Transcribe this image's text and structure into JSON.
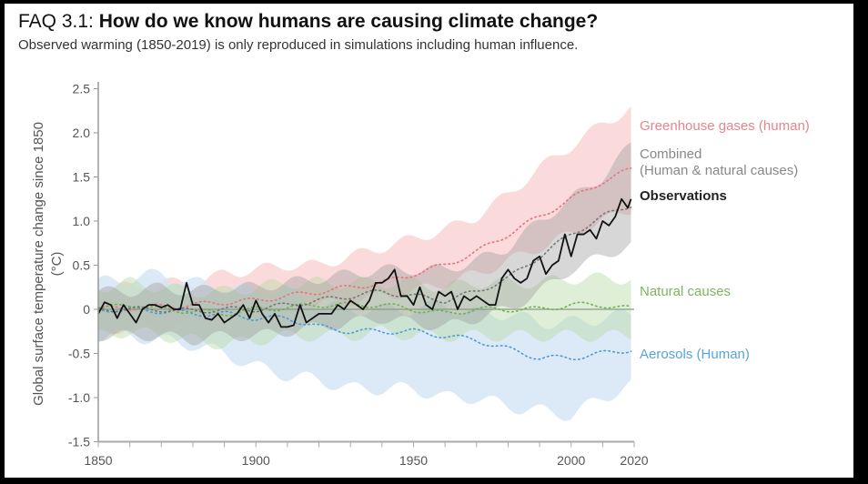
{
  "title": {
    "prefix": "FAQ 3.1:",
    "main": "How do we know humans are causing climate change?"
  },
  "subtitle": "Observed warming (1850-2019) is only reproduced in simulations including human influence.",
  "chart_data": {
    "type": "line",
    "ylabel": "Global surface temperature change since 1850",
    "yunit": "(°C)",
    "xlim": [
      1850,
      2020
    ],
    "ylim": [
      -1.5,
      2.5
    ],
    "xticks": [
      1850,
      1900,
      1950,
      2000,
      2020
    ],
    "yticks": [
      2.5,
      2.0,
      1.5,
      1.0,
      0.5,
      0,
      -0.5,
      -1.0,
      -1.5
    ],
    "ytick_labels": [
      "2.5",
      "2.0",
      "1.5",
      "1.0",
      "0.5",
      "0",
      "-0.5",
      "-1.0",
      "-1.5"
    ],
    "grid": false,
    "legend_placement": "right (inline labels)",
    "band_years": [
      1850,
      1860,
      1870,
      1880,
      1890,
      1900,
      1910,
      1920,
      1930,
      1940,
      1950,
      1960,
      1970,
      1980,
      1990,
      2000,
      2010,
      2020
    ],
    "series": [
      {
        "name": "Greenhouse gases (human)",
        "color": "#e8747a",
        "band_color": "#f9d3d5",
        "median": [
          0,
          0.02,
          0.03,
          0.05,
          0.08,
          0.1,
          0.15,
          0.2,
          0.25,
          0.3,
          0.4,
          0.5,
          0.65,
          0.85,
          1.05,
          1.25,
          1.45,
          1.6
        ],
        "low": [
          -0.25,
          -0.2,
          -0.2,
          -0.15,
          -0.1,
          -0.05,
          0,
          0.05,
          0.1,
          0.15,
          0.2,
          0.3,
          0.4,
          0.55,
          0.7,
          0.85,
          1.0,
          1.15
        ],
        "high": [
          0.25,
          0.25,
          0.3,
          0.3,
          0.4,
          0.45,
          0.5,
          0.5,
          0.6,
          0.7,
          0.8,
          0.9,
          1.05,
          1.3,
          1.6,
          1.85,
          2.1,
          2.3
        ]
      },
      {
        "name": "Aerosols (Human)",
        "color": "#4a9ad8",
        "band_color": "#d6e5f4",
        "median": [
          0,
          0,
          -0.02,
          -0.05,
          -0.05,
          -0.1,
          -0.1,
          -0.2,
          -0.25,
          -0.25,
          -0.25,
          -0.3,
          -0.35,
          -0.45,
          -0.55,
          -0.55,
          -0.5,
          -0.45
        ],
        "low": [
          -0.3,
          -0.3,
          -0.35,
          -0.4,
          -0.5,
          -0.65,
          -0.75,
          -0.8,
          -0.9,
          -0.9,
          -0.9,
          -1.0,
          -1.0,
          -1.1,
          -1.15,
          -1.2,
          -1.0,
          -0.85
        ],
        "high": [
          0.3,
          0.35,
          0.4,
          0.3,
          0.25,
          0.2,
          0.2,
          0.05,
          0,
          0,
          0,
          0.05,
          -0.05,
          -0.05,
          -0.15,
          -0.15,
          -0.1,
          -0.05
        ]
      },
      {
        "name": "Natural causes",
        "color": "#6fb24c",
        "band_color": "#b9d9a6",
        "median": [
          0,
          0.05,
          0,
          -0.02,
          -0.05,
          0,
          0.02,
          0.05,
          0.05,
          0.05,
          0,
          -0.05,
          0,
          0,
          0,
          0.05,
          0.05,
          0
        ],
        "low": [
          -0.3,
          -0.25,
          -0.3,
          -0.35,
          -0.4,
          -0.35,
          -0.3,
          -0.3,
          -0.3,
          -0.25,
          -0.3,
          -0.3,
          -0.3,
          -0.3,
          -0.3,
          -0.3,
          -0.3,
          -0.3
        ],
        "high": [
          0.25,
          0.3,
          0.25,
          0.2,
          0.2,
          0.25,
          0.3,
          0.3,
          0.3,
          0.3,
          0.3,
          0.25,
          0.3,
          0.3,
          0.3,
          0.35,
          0.35,
          0.35
        ]
      },
      {
        "name": "Combined",
        "name_line2": "(Human & natural causes)",
        "color": "#777777",
        "band_color": "#9a9a9a",
        "median": [
          0,
          0,
          0,
          -0.02,
          0,
          0,
          0.05,
          0.1,
          0.15,
          0.2,
          0.15,
          0.1,
          0.2,
          0.35,
          0.6,
          0.85,
          1.05,
          1.2
        ],
        "low": [
          -0.3,
          -0.3,
          -0.3,
          -0.35,
          -0.3,
          -0.3,
          -0.25,
          -0.2,
          -0.15,
          -0.1,
          -0.15,
          -0.2,
          -0.1,
          0,
          0.2,
          0.45,
          0.6,
          0.75
        ],
        "high": [
          0.2,
          0.2,
          0.25,
          0.2,
          0.25,
          0.25,
          0.3,
          0.35,
          0.4,
          0.45,
          0.45,
          0.45,
          0.55,
          0.7,
          1.0,
          1.25,
          1.5,
          1.9
        ]
      }
    ],
    "observations": {
      "name": "Observations",
      "color": "#111111",
      "x": [
        1850,
        1852,
        1854,
        1856,
        1858,
        1860,
        1862,
        1864,
        1866,
        1868,
        1870,
        1872,
        1874,
        1876,
        1878,
        1880,
        1882,
        1884,
        1886,
        1888,
        1890,
        1892,
        1894,
        1896,
        1898,
        1900,
        1902,
        1904,
        1906,
        1908,
        1910,
        1912,
        1914,
        1916,
        1918,
        1920,
        1922,
        1924,
        1926,
        1928,
        1930,
        1932,
        1934,
        1936,
        1938,
        1940,
        1942,
        1944,
        1946,
        1948,
        1950,
        1952,
        1954,
        1956,
        1958,
        1960,
        1962,
        1964,
        1966,
        1968,
        1970,
        1972,
        1974,
        1976,
        1978,
        1980,
        1982,
        1984,
        1986,
        1988,
        1990,
        1992,
        1994,
        1996,
        1998,
        2000,
        2002,
        2004,
        2006,
        2008,
        2010,
        2012,
        2014,
        2016,
        2018,
        2019
      ],
      "y": [
        -0.05,
        0.08,
        0.05,
        -0.1,
        0.05,
        -0.05,
        -0.15,
        0,
        0.05,
        0.05,
        0.02,
        0.05,
        0,
        0,
        0.3,
        0.05,
        0.05,
        -0.1,
        -0.12,
        -0.05,
        -0.15,
        -0.1,
        -0.05,
        0.05,
        -0.1,
        0.1,
        -0.05,
        -0.15,
        -0.05,
        -0.2,
        -0.2,
        -0.18,
        0.05,
        -0.15,
        -0.1,
        -0.05,
        -0.05,
        -0.05,
        0.05,
        0,
        0.1,
        0.05,
        0,
        0.1,
        0.3,
        0.3,
        0.35,
        0.45,
        0.15,
        0.15,
        0.05,
        0.25,
        0.05,
        0,
        0.2,
        0.15,
        0.2,
        0,
        0.15,
        0.1,
        0.15,
        0.1,
        0.05,
        0.05,
        0.35,
        0.45,
        0.35,
        0.3,
        0.35,
        0.55,
        0.6,
        0.4,
        0.5,
        0.55,
        0.85,
        0.6,
        0.85,
        0.85,
        0.9,
        0.8,
        1.0,
        0.95,
        1.05,
        1.25,
        1.15,
        1.25
      ]
    }
  }
}
